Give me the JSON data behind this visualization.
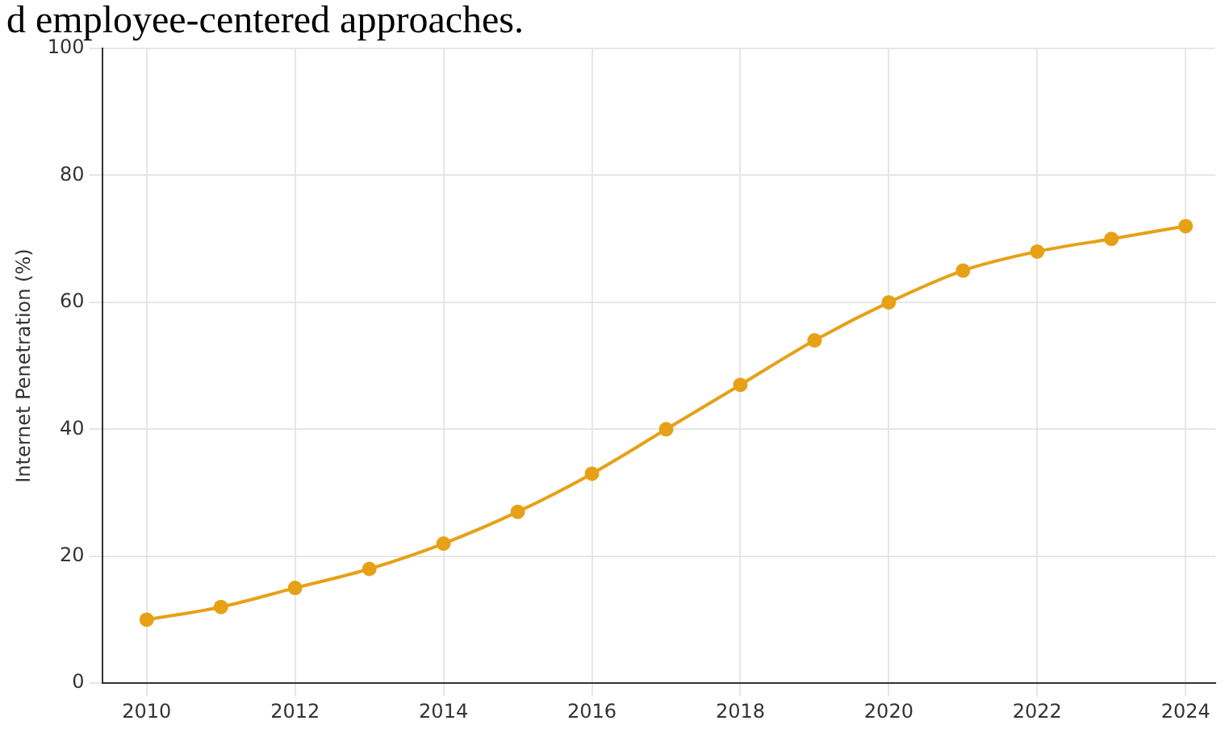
{
  "chart_data": {
    "type": "line",
    "ylabel": "Internet Penetration (%)",
    "annotations": [
      "d employee-centered approaches."
    ],
    "x": [
      2010,
      2011,
      2012,
      2013,
      2014,
      2015,
      2016,
      2017,
      2018,
      2019,
      2020,
      2021,
      2022,
      2023,
      2024
    ],
    "series": [
      {
        "color": "#e6a117",
        "values": [
          10,
          12,
          15,
          18,
          22,
          27,
          33,
          40,
          47,
          54,
          60,
          65,
          68,
          70,
          72
        ]
      }
    ],
    "xlim": [
      2009.4,
      2024.4
    ],
    "xticks": [
      2010,
      2012,
      2014,
      2016,
      2018,
      2020,
      2022,
      2024
    ],
    "ylim": [
      0,
      100
    ],
    "yticks": [
      0,
      20,
      40,
      60,
      80,
      100
    ],
    "grid": true,
    "legend": false,
    "marker": "circle",
    "line_style": "solid"
  }
}
